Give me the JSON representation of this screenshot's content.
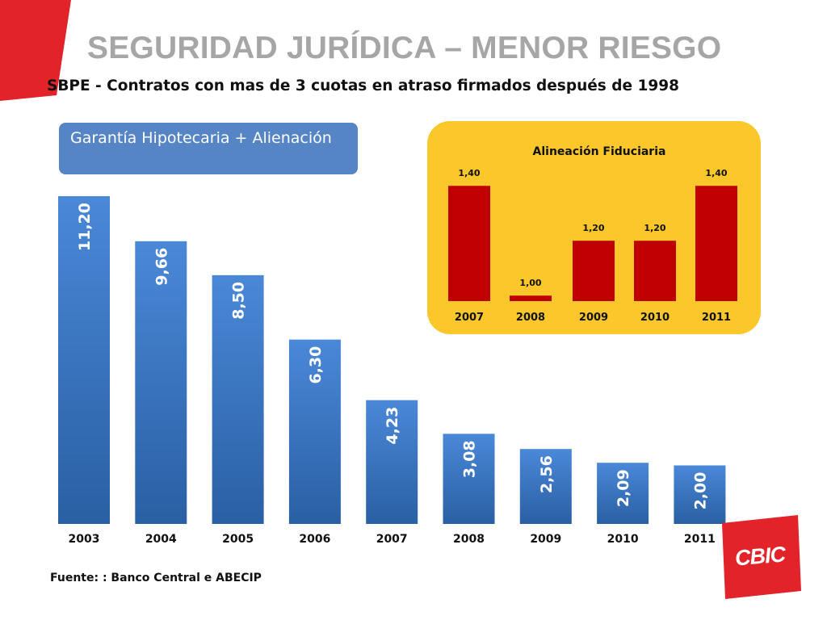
{
  "slide": {
    "title": "SEGURIDAD JURÍDICA – MENOR RIESGO",
    "subtitle": "SBPE - Contratos con mas de 3 cuotas en atraso firmados después de 1998",
    "source": "Fuente: : Banco Central e ABECIP",
    "logo_text": "CBIC"
  },
  "colors": {
    "accent_red": "#e2232a",
    "bar_blue_top": "#4a88d8",
    "bar_blue_bottom": "#2a5fa3",
    "inset_panel": "#fcc72b",
    "inset_bar": "#c00000",
    "title_gray": "#a6a6a6"
  },
  "chart_data": [
    {
      "type": "bar",
      "series_name": "Garantía Hipotecaria + Alienación",
      "categories": [
        "2003",
        "2004",
        "2005",
        "2006",
        "2007",
        "2008",
        "2009",
        "2010",
        "2011"
      ],
      "values": [
        11.2,
        9.66,
        8.5,
        6.3,
        4.23,
        3.08,
        2.56,
        2.09,
        2.0
      ],
      "value_labels": [
        "11,20",
        "9,66",
        "8,50",
        "6,30",
        "4,23",
        "3,08",
        "2,56",
        "2,09",
        "2,00"
      ]
    },
    {
      "type": "bar",
      "title": "Alineación Fiduciaria",
      "categories": [
        "2007",
        "2008",
        "2009",
        "2010",
        "2011"
      ],
      "values": [
        1.4,
        1.0,
        1.2,
        1.2,
        1.4
      ],
      "value_labels": [
        "1,40",
        "1,00",
        "1,20",
        "1,20",
        "1,40"
      ]
    }
  ]
}
